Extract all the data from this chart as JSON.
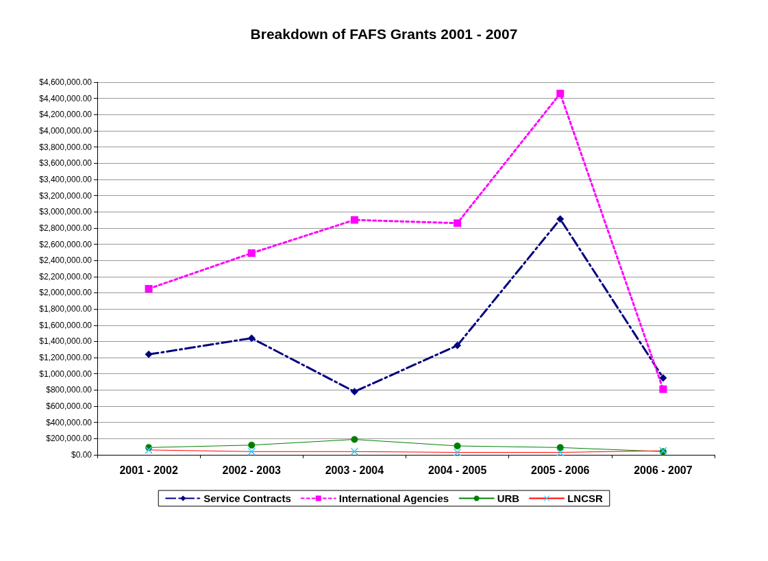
{
  "chart_data": {
    "type": "line",
    "title": "Breakdown of FAFS Grants 2001 - 2007",
    "categories": [
      "2001 - 2002",
      "2002 - 2003",
      "2003 - 2004",
      "2004 - 2005",
      "2005 - 2006",
      "2006 - 2007"
    ],
    "series": [
      {
        "name": "Service Contracts",
        "color": "#000080",
        "marker": "diamond",
        "line_style": "dashed",
        "values": [
          1240000,
          1440000,
          780000,
          1350000,
          2910000,
          950000
        ]
      },
      {
        "name": "International Agencies",
        "color": "#ff00ff",
        "marker": "square",
        "line_style": "dotted",
        "values": [
          2050000,
          2490000,
          2900000,
          2860000,
          4460000,
          810000
        ]
      },
      {
        "name": "URB",
        "color": "#008000",
        "marker": "circle",
        "line_style": "solid",
        "values": [
          90000,
          120000,
          190000,
          110000,
          90000,
          40000
        ]
      },
      {
        "name": "LNCSR",
        "color": "#ff0000",
        "marker": "cross",
        "line_style": "solid",
        "values": [
          60000,
          40000,
          40000,
          30000,
          30000,
          50000
        ]
      }
    ],
    "ylim": [
      0,
      4600000
    ],
    "yticks": [
      {
        "value": 0,
        "label": "$0.00"
      },
      {
        "value": 200000,
        "label": "$200,000.00"
      },
      {
        "value": 400000,
        "label": "$400,000.00"
      },
      {
        "value": 600000,
        "label": "$600,000.00"
      },
      {
        "value": 800000,
        "label": "$800,000.00"
      },
      {
        "value": 1000000,
        "label": "$1,000,000.00"
      },
      {
        "value": 1200000,
        "label": "$1,200,000.00"
      },
      {
        "value": 1400000,
        "label": "$1,400,000.00"
      },
      {
        "value": 1600000,
        "label": "$1,600,000.00"
      },
      {
        "value": 1800000,
        "label": "$1,800,000.00"
      },
      {
        "value": 2000000,
        "label": "$2,000,000.00"
      },
      {
        "value": 2200000,
        "label": "$2,200,000.00"
      },
      {
        "value": 2400000,
        "label": "$2,400,000.00"
      },
      {
        "value": 2600000,
        "label": "$2,600,000.00"
      },
      {
        "value": 2800000,
        "label": "$2,800,000.00"
      },
      {
        "value": 3000000,
        "label": "$3,000,000.00"
      },
      {
        "value": 3200000,
        "label": "$3,200,000.00"
      },
      {
        "value": 3400000,
        "label": "$3,400,000.00"
      },
      {
        "value": 3600000,
        "label": "$3,600,000.00"
      },
      {
        "value": 3800000,
        "label": "$3,800,000.00"
      },
      {
        "value": 4000000,
        "label": "$4,000,000.00"
      },
      {
        "value": 4200000,
        "label": "$4,200,000.00"
      },
      {
        "value": 4400000,
        "label": "$4,400,000.00"
      },
      {
        "value": 4600000,
        "label": "$4,600,000.00"
      }
    ],
    "grid": "y",
    "legend": "bottom"
  }
}
